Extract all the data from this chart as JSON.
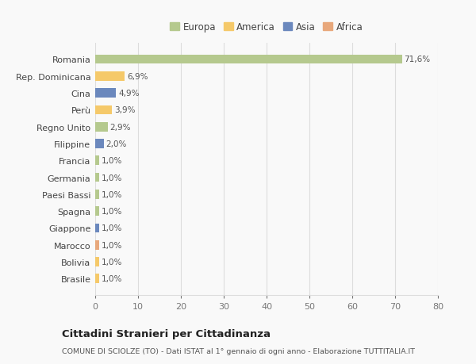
{
  "categories": [
    "Romania",
    "Rep. Dominicana",
    "Cina",
    "Perù",
    "Regno Unito",
    "Filippine",
    "Francia",
    "Germania",
    "Paesi Bassi",
    "Spagna",
    "Giappone",
    "Marocco",
    "Bolivia",
    "Brasile"
  ],
  "values": [
    71.6,
    6.9,
    4.9,
    3.9,
    2.9,
    2.0,
    1.0,
    1.0,
    1.0,
    1.0,
    1.0,
    1.0,
    1.0,
    1.0
  ],
  "labels": [
    "71,6%",
    "6,9%",
    "4,9%",
    "3,9%",
    "2,9%",
    "2,0%",
    "1,0%",
    "1,0%",
    "1,0%",
    "1,0%",
    "1,0%",
    "1,0%",
    "1,0%",
    "1,0%"
  ],
  "continent": [
    "Europa",
    "America",
    "Asia",
    "America",
    "Europa",
    "Asia",
    "Europa",
    "Europa",
    "Europa",
    "Europa",
    "Asia",
    "Africa",
    "America",
    "America"
  ],
  "colors": {
    "Europa": "#b5c98e",
    "America": "#f5c96a",
    "Asia": "#6b88bd",
    "Africa": "#e8a87c"
  },
  "legend_order": [
    "Europa",
    "America",
    "Asia",
    "Africa"
  ],
  "title": "Cittadini Stranieri per Cittadinanza",
  "subtitle": "COMUNE DI SCIOLZE (TO) - Dati ISTAT al 1° gennaio di ogni anno - Elaborazione TUTTITALIA.IT",
  "xlim": [
    0,
    80
  ],
  "xticks": [
    0,
    10,
    20,
    30,
    40,
    50,
    60,
    70,
    80
  ],
  "background_color": "#f9f9f9",
  "grid_color": "#dddddd"
}
